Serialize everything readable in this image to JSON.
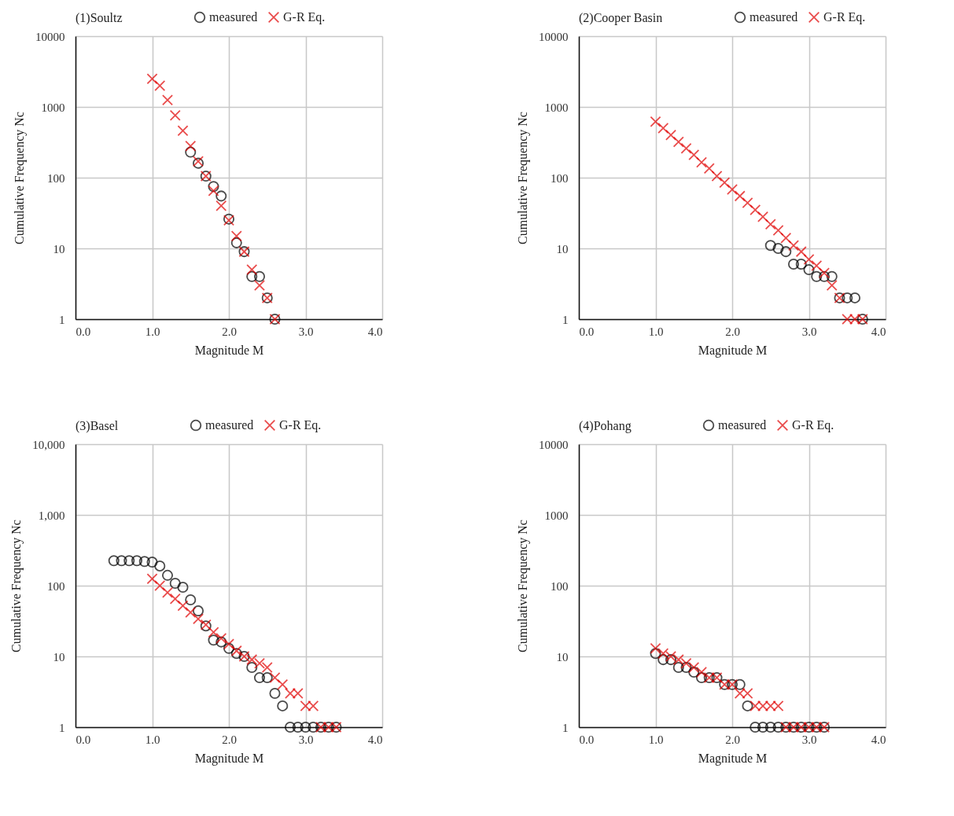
{
  "chart_data": [
    {
      "type": "scatter",
      "title": "(1)Soultz",
      "xlabel": "Magnitude M",
      "ylabel": "Cumulative Frequency Nc",
      "log": "y",
      "grid": true,
      "legend": "top",
      "xlim": [
        0,
        4
      ],
      "ylim": [
        1,
        10000
      ],
      "xticks": [
        {
          "value": 0,
          "label": "0.0"
        },
        {
          "value": 1,
          "label": "1.0"
        },
        {
          "value": 2,
          "label": "2.0"
        },
        {
          "value": 3,
          "label": "3.0"
        },
        {
          "value": 4,
          "label": "4.0"
        }
      ],
      "yticks": [
        1,
        10,
        100,
        1000,
        10000
      ],
      "series": [
        {
          "name": "measured",
          "color": "#000000",
          "marker": "circle",
          "x": [
            1.5,
            1.6,
            1.7,
            1.8,
            1.9,
            2.0,
            2.1,
            2.2,
            2.3,
            2.4,
            2.5,
            2.6
          ],
          "values": [
            230,
            160,
            105,
            75,
            55,
            26,
            12,
            9,
            4,
            4,
            2,
            1
          ]
        },
        {
          "name": "G-R Eq.",
          "color": "#e00000",
          "marker": "cross",
          "x": [
            1.0,
            1.1,
            1.2,
            1.3,
            1.4,
            1.5,
            1.6,
            1.7,
            1.8,
            1.9,
            2.0,
            2.1,
            2.2,
            2.3,
            2.4,
            2.5,
            2.6
          ],
          "values": [
            2500,
            2000,
            1250,
            760,
            460,
            280,
            170,
            105,
            65,
            40,
            25,
            15,
            9,
            5,
            3,
            2,
            1
          ]
        }
      ]
    },
    {
      "type": "scatter",
      "title": "(2)Cooper Basin",
      "xlabel": "Magnitude M",
      "ylabel": "Cumulative Frequency Nc",
      "log": "y",
      "grid": true,
      "legend": "top",
      "xlim": [
        0,
        4
      ],
      "ylim": [
        1,
        10000
      ],
      "xticks": [
        {
          "value": 0,
          "label": "0.0"
        },
        {
          "value": 1,
          "label": "1.0"
        },
        {
          "value": 2,
          "label": "2.0"
        },
        {
          "value": 3,
          "label": "3.0"
        },
        {
          "value": 4,
          "label": "4.0"
        }
      ],
      "yticks": [
        1,
        10,
        100,
        1000,
        10000
      ],
      "series": [
        {
          "name": "measured",
          "color": "#000000",
          "marker": "circle",
          "x": [
            2.5,
            2.6,
            2.7,
            2.8,
            2.9,
            3.0,
            3.1,
            3.2,
            3.3,
            3.4,
            3.5,
            3.6,
            3.7
          ],
          "values": [
            11,
            10,
            9,
            6,
            6,
            5,
            4,
            4,
            4,
            2,
            2,
            2,
            1
          ]
        },
        {
          "name": "G-R Eq.",
          "color": "#e00000",
          "marker": "cross",
          "x": [
            1.0,
            1.1,
            1.2,
            1.3,
            1.4,
            1.5,
            1.6,
            1.7,
            1.8,
            1.9,
            2.0,
            2.1,
            2.2,
            2.3,
            2.4,
            2.5,
            2.6,
            2.7,
            2.8,
            2.9,
            3.0,
            3.1,
            3.2,
            3.3,
            3.4,
            3.5,
            3.6,
            3.7
          ],
          "values": [
            620,
            500,
            400,
            320,
            260,
            210,
            165,
            135,
            105,
            85,
            68,
            55,
            44,
            35,
            28,
            22,
            18,
            14,
            11,
            9,
            7,
            5.7,
            4.5,
            3,
            2,
            1,
            1,
            1
          ]
        }
      ]
    },
    {
      "type": "scatter",
      "title": "(3)Basel",
      "xlabel": "Magnitude M",
      "ylabel": "Cumulative Frequency Nc",
      "log": "y",
      "grid": true,
      "legend": "top",
      "xlim": [
        0,
        4
      ],
      "ylim": [
        1,
        10000
      ],
      "xticks": [
        {
          "value": 0,
          "label": "0.0"
        },
        {
          "value": 1,
          "label": "1.0"
        },
        {
          "value": 2,
          "label": "2.0"
        },
        {
          "value": 3,
          "label": "3.0"
        },
        {
          "value": 4,
          "label": "4.0"
        }
      ],
      "yticks": [
        1,
        10,
        100,
        {
          "value": 1000,
          "label": "1,000"
        },
        {
          "value": 10000,
          "label": "10,000"
        }
      ],
      "series": [
        {
          "name": "measured",
          "color": "#000000",
          "marker": "circle",
          "x": [
            0.5,
            0.6,
            0.7,
            0.8,
            0.9,
            1.0,
            1.1,
            1.2,
            1.3,
            1.4,
            1.5,
            1.6,
            1.7,
            1.8,
            1.9,
            2.0,
            2.1,
            2.2,
            2.3,
            2.4,
            2.5,
            2.6,
            2.7,
            2.8,
            2.9,
            3.0,
            3.1,
            3.2,
            3.3,
            3.4
          ],
          "values": [
            225,
            225,
            225,
            225,
            220,
            215,
            190,
            140,
            108,
            95,
            63,
            44,
            27,
            17,
            16,
            13,
            11,
            10,
            7,
            5,
            5,
            3,
            2,
            1,
            1,
            1,
            1,
            1,
            1,
            1
          ]
        },
        {
          "name": "G-R Eq.",
          "color": "#e00000",
          "marker": "cross",
          "x": [
            1.0,
            1.1,
            1.2,
            1.3,
            1.4,
            1.5,
            1.6,
            1.7,
            1.8,
            1.9,
            2.0,
            2.1,
            2.2,
            2.3,
            2.4,
            2.5,
            2.6,
            2.7,
            2.8,
            2.9,
            3.0,
            3.1,
            3.2,
            3.3,
            3.4
          ],
          "values": [
            125,
            100,
            80,
            65,
            52,
            42,
            34,
            28,
            22,
            18,
            15,
            12,
            10,
            9,
            8,
            7,
            5,
            4,
            3,
            3,
            2,
            2,
            1,
            1,
            1
          ]
        }
      ]
    },
    {
      "type": "scatter",
      "title": "(4)Pohang",
      "xlabel": "Magnitude M",
      "ylabel": "Cumulative Frequency Nc",
      "log": "y",
      "grid": true,
      "legend": "top",
      "xlim": [
        0,
        4
      ],
      "ylim": [
        1,
        10000
      ],
      "xticks": [
        {
          "value": 0,
          "label": "0.0"
        },
        {
          "value": 1,
          "label": "1.0"
        },
        {
          "value": 2,
          "label": "2.0"
        },
        {
          "value": 3,
          "label": "3.0"
        },
        {
          "value": 4,
          "label": "4.0"
        }
      ],
      "yticks": [
        1,
        10,
        100,
        1000,
        10000
      ],
      "series": [
        {
          "name": "measured",
          "color": "#000000",
          "marker": "circle",
          "x": [
            1.0,
            1.1,
            1.2,
            1.3,
            1.4,
            1.5,
            1.6,
            1.7,
            1.8,
            1.9,
            2.0,
            2.1,
            2.2,
            2.3,
            2.4,
            2.5,
            2.6,
            2.7,
            2.8,
            2.9,
            3.0,
            3.1,
            3.2
          ],
          "values": [
            11,
            9,
            9,
            7,
            7,
            6,
            5,
            5,
            5,
            4,
            4,
            4,
            2,
            1,
            1,
            1,
            1,
            1,
            1,
            1,
            1,
            1,
            1
          ]
        },
        {
          "name": "G-R Eq.",
          "color": "#e00000",
          "marker": "cross",
          "x": [
            1.0,
            1.1,
            1.2,
            1.3,
            1.4,
            1.5,
            1.6,
            1.7,
            1.8,
            1.9,
            2.0,
            2.1,
            2.2,
            2.3,
            2.4,
            2.5,
            2.6,
            2.7,
            2.8,
            2.9,
            3.0,
            3.1,
            3.2
          ],
          "values": [
            13,
            11,
            10,
            9,
            8,
            7,
            6,
            5,
            5,
            4,
            4,
            3,
            3,
            2,
            2,
            2,
            2,
            1,
            1,
            1,
            1,
            1,
            1
          ]
        }
      ]
    }
  ]
}
